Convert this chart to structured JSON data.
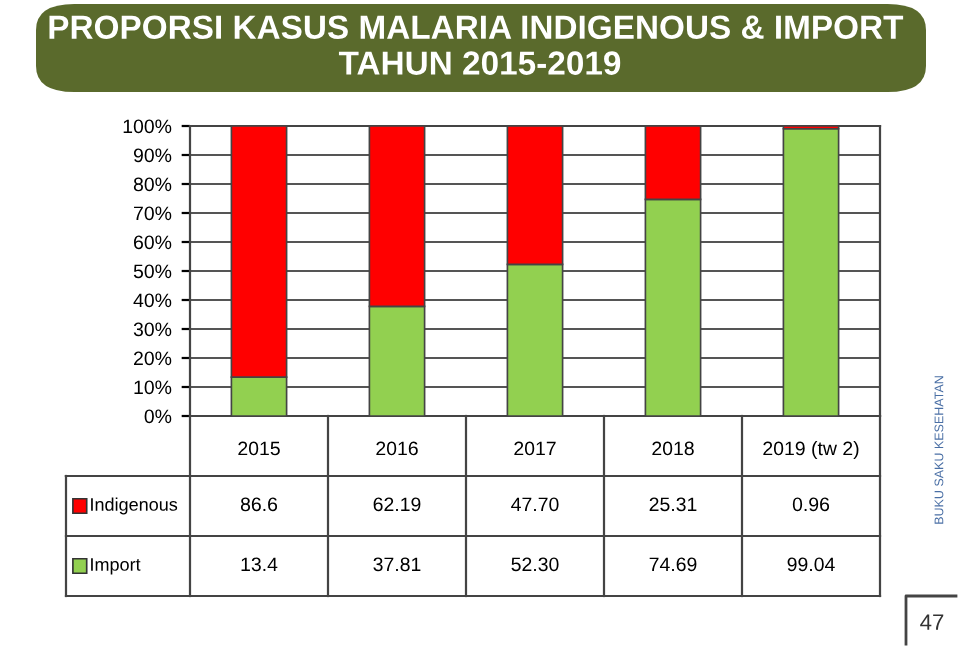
{
  "chart_data": {
    "type": "bar",
    "stacked": true,
    "title": "PROPORSI KASUS MALARIA INDIGENOUS & IMPORT  TAHUN 2015-2019",
    "categories": [
      "2015",
      "2016",
      "2017",
      "2018",
      "2019 (tw 2)"
    ],
    "series": [
      {
        "name": "Import",
        "color": "#92d050",
        "values": [
          13.4,
          37.81,
          52.3,
          74.69,
          99.04
        ],
        "value_labels": [
          "13.4",
          "37.81",
          "52.30",
          "74.69",
          "99.04"
        ]
      },
      {
        "name": "Indigenous",
        "color": "#ff0000",
        "values": [
          86.6,
          62.19,
          47.7,
          25.31,
          0.96
        ],
        "value_labels": [
          "86.6",
          "62.19",
          "47.70",
          "25.31",
          "0.96"
        ]
      }
    ],
    "ylim": [
      0,
      100
    ],
    "yticks": [
      {
        "value": 0,
        "label": "0%"
      },
      {
        "value": 10,
        "label": "10%"
      },
      {
        "value": 20,
        "label": "20%"
      },
      {
        "value": 30,
        "label": "30%"
      },
      {
        "value": 40,
        "label": "40%"
      },
      {
        "value": 50,
        "label": "50%"
      },
      {
        "value": 60,
        "label": "60%"
      },
      {
        "value": 70,
        "label": "70%"
      },
      {
        "value": 80,
        "label": "80%"
      },
      {
        "value": 90,
        "label": "90%"
      },
      {
        "value": 100,
        "label": "100%"
      }
    ],
    "grid": "y",
    "legend": "bottom",
    "annotations": [
      "BUKU SAKU KESEHATAN",
      "47"
    ]
  }
}
